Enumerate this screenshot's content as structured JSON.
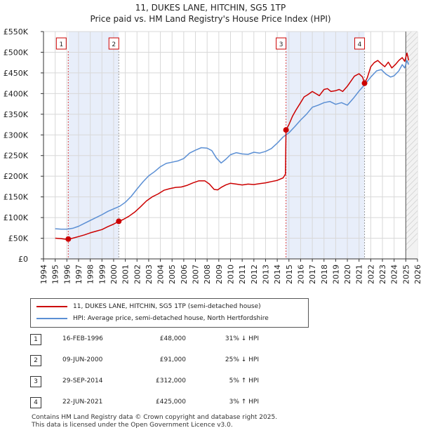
{
  "title": "11, DUKES LANE, HITCHIN, SG5 1TP",
  "subtitle": "Price paid vs. HM Land Registry's House Price Index (HPI)",
  "legend": {
    "property_label": "11, DUKES LANE, HITCHIN, SG5 1TP (semi-detached house)",
    "hpi_label": "HPI: Average price, semi-detached house, North Hertfordshire"
  },
  "colors": {
    "property": "#cc0000",
    "hpi": "#5b8fd4",
    "shade": "#e8eefa",
    "grid": "#d8d8d8",
    "dash_red": "#dd4444",
    "dash_grey": "#999999"
  },
  "transactions": [
    {
      "num": "1",
      "date": "16-FEB-1996",
      "price": "£48,000",
      "hpi": "31% ↓ HPI",
      "year": 1996.12,
      "value": 48000
    },
    {
      "num": "2",
      "date": "09-JUN-2000",
      "price": "£91,000",
      "hpi": "25% ↓ HPI",
      "year": 2000.44,
      "value": 91000
    },
    {
      "num": "3",
      "date": "29-SEP-2014",
      "price": "£312,000",
      "hpi": "5% ↑ HPI",
      "year": 2014.75,
      "value": 312000
    },
    {
      "num": "4",
      "date": "22-JUN-2021",
      "price": "£425,000",
      "hpi": "3% ↑ HPI",
      "year": 2021.47,
      "value": 425000
    }
  ],
  "footer": {
    "line1": "Contains HM Land Registry data © Crown copyright and database right 2025.",
    "line2": "This data is licensed under the Open Government Licence v3.0."
  },
  "chart_data": {
    "type": "line",
    "title": "11, DUKES LANE, HITCHIN, SG5 1TP",
    "subtitle": "Price paid vs. HM Land Registry's House Price Index (HPI)",
    "xlim": [
      1994,
      2026
    ],
    "ylim": [
      0,
      550000
    ],
    "x_ticks": [
      "1994",
      "1995",
      "1996",
      "1997",
      "1998",
      "1999",
      "2000",
      "2001",
      "2002",
      "2003",
      "2004",
      "2005",
      "2006",
      "2007",
      "2008",
      "2009",
      "2010",
      "2011",
      "2012",
      "2013",
      "2014",
      "2015",
      "2016",
      "2017",
      "2018",
      "2019",
      "2020",
      "2021",
      "2022",
      "2023",
      "2024",
      "2025",
      "2026"
    ],
    "y_ticks": [
      {
        "value": 0,
        "label": "£0"
      },
      {
        "value": 50000,
        "label": "£50K"
      },
      {
        "value": 100000,
        "label": "£100K"
      },
      {
        "value": 150000,
        "label": "£150K"
      },
      {
        "value": 200000,
        "label": "£200K"
      },
      {
        "value": 250000,
        "label": "£250K"
      },
      {
        "value": 300000,
        "label": "£300K"
      },
      {
        "value": 350000,
        "label": "£350K"
      },
      {
        "value": 400000,
        "label": "£400K"
      },
      {
        "value": 450000,
        "label": "£450K"
      },
      {
        "value": 500000,
        "label": "£500K"
      },
      {
        "value": 550000,
        "label": "£550K"
      }
    ],
    "shaded_ranges": [
      [
        1996.12,
        2000.44
      ],
      [
        2014.75,
        2021.47
      ]
    ],
    "hatched_from": 2025.0,
    "grid": true,
    "legend_position": "bottom-left",
    "series": [
      {
        "name": "11, DUKES LANE, HITCHIN, SG5 1TP (semi-detached house)",
        "color": "#cc0000",
        "x": [
          1995.0,
          1995.5,
          1996.0,
          1996.12,
          1996.5,
          1997.0,
          1997.5,
          1998.0,
          1998.5,
          1999.0,
          1999.5,
          2000.0,
          2000.44,
          2000.8,
          2001.3,
          2001.8,
          2002.3,
          2002.8,
          2003.3,
          2003.8,
          2004.3,
          2004.8,
          2005.3,
          2005.8,
          2006.3,
          2006.8,
          2007.3,
          2007.8,
          2008.2,
          2008.6,
          2008.9,
          2009.2,
          2009.6,
          2010.0,
          2010.5,
          2011.0,
          2011.5,
          2012.0,
          2012.5,
          2013.0,
          2013.5,
          2014.0,
          2014.5,
          2014.7,
          2014.75,
          2015.0,
          2015.3,
          2015.6,
          2016.0,
          2016.3,
          2016.6,
          2017.0,
          2017.3,
          2017.6,
          2018.0,
          2018.3,
          2018.6,
          2019.0,
          2019.3,
          2019.6,
          2020.0,
          2020.3,
          2020.6,
          2021.0,
          2021.3,
          2021.47,
          2021.7,
          2022.0,
          2022.3,
          2022.6,
          2022.9,
          2023.2,
          2023.5,
          2023.8,
          2024.1,
          2024.4,
          2024.7,
          2024.9,
          2025.1,
          2025.25
        ],
        "values": [
          50000,
          49000,
          47000,
          48000,
          50000,
          54000,
          58000,
          63000,
          67000,
          71000,
          78000,
          84000,
          91000,
          95000,
          103000,
          113000,
          126000,
          140000,
          150000,
          157000,
          166000,
          170000,
          173000,
          174000,
          178000,
          184000,
          189000,
          189000,
          181000,
          168000,
          167000,
          173000,
          179000,
          183000,
          181000,
          179000,
          181000,
          180000,
          182000,
          184000,
          187000,
          190000,
          196000,
          205000,
          312000,
          325000,
          345000,
          360000,
          378000,
          392000,
          397000,
          405000,
          400000,
          395000,
          410000,
          412000,
          405000,
          407000,
          410000,
          405000,
          418000,
          430000,
          442000,
          448000,
          440000,
          425000,
          438000,
          465000,
          475000,
          480000,
          472000,
          465000,
          476000,
          462000,
          470000,
          480000,
          487000,
          478000,
          498000,
          480000
        ]
      },
      {
        "name": "HPI: Average price, semi-detached house, North Hertfordshire",
        "color": "#5b8fd4",
        "x": [
          1995.0,
          1995.5,
          1996.0,
          1996.5,
          1997.0,
          1997.5,
          1998.0,
          1998.5,
          1999.0,
          1999.5,
          2000.0,
          2000.5,
          2001.0,
          2001.5,
          2002.0,
          2002.5,
          2003.0,
          2003.5,
          2004.0,
          2004.5,
          2005.0,
          2005.5,
          2006.0,
          2006.5,
          2007.0,
          2007.5,
          2008.0,
          2008.4,
          2008.8,
          2009.2,
          2009.6,
          2010.0,
          2010.5,
          2011.0,
          2011.5,
          2012.0,
          2012.5,
          2013.0,
          2013.5,
          2014.0,
          2014.5,
          2015.0,
          2015.5,
          2016.0,
          2016.5,
          2017.0,
          2017.5,
          2018.0,
          2018.5,
          2019.0,
          2019.5,
          2020.0,
          2020.5,
          2021.0,
          2021.5,
          2022.0,
          2022.5,
          2022.9,
          2023.3,
          2023.7,
          2024.0,
          2024.4,
          2024.7,
          2024.9,
          2025.1,
          2025.25
        ],
        "values": [
          73000,
          72000,
          72000,
          74000,
          79000,
          86000,
          93000,
          100000,
          107000,
          115000,
          121000,
          127000,
          137000,
          151000,
          169000,
          186000,
          201000,
          211000,
          223000,
          231000,
          234000,
          237000,
          243000,
          256000,
          263000,
          269000,
          268000,
          262000,
          244000,
          232000,
          241000,
          252000,
          257000,
          254000,
          253000,
          258000,
          256000,
          260000,
          267000,
          280000,
          295000,
          305000,
          320000,
          336000,
          350000,
          367000,
          372000,
          378000,
          381000,
          374000,
          378000,
          372000,
          388000,
          406000,
          422000,
          440000,
          455000,
          458000,
          447000,
          440000,
          443000,
          455000,
          470000,
          462000,
          480000,
          470000
        ]
      }
    ]
  }
}
